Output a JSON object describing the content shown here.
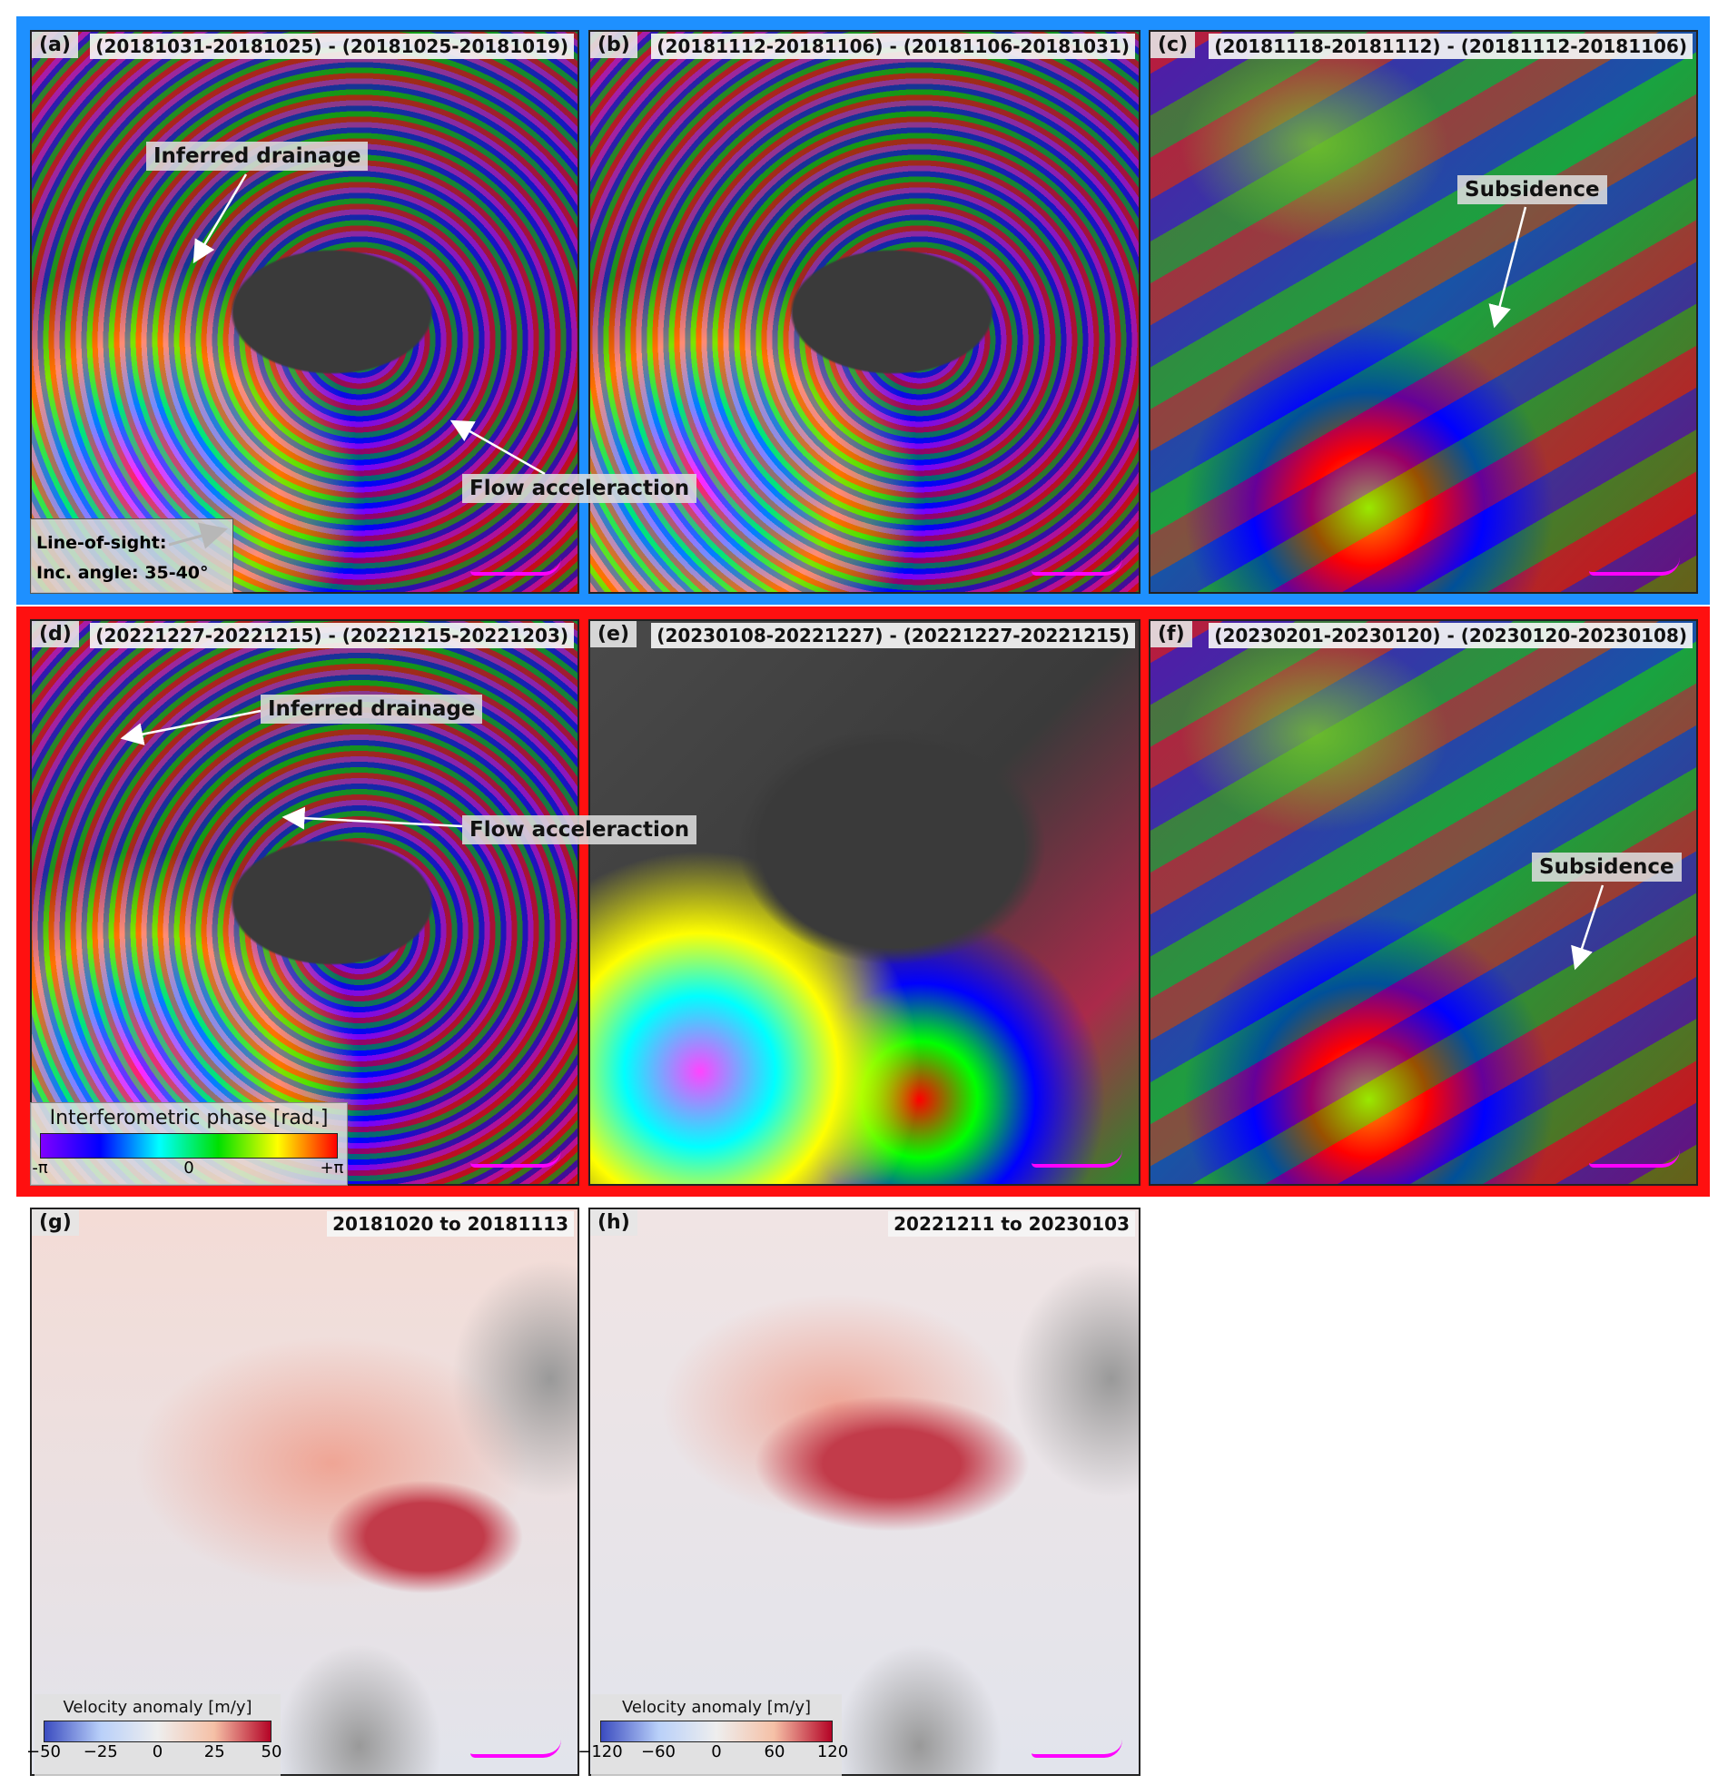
{
  "panels": [
    {
      "id": "(a)",
      "title": "(20181031-20181025) - (20181025-20181019)"
    },
    {
      "id": "(b)",
      "title": "(20181112-20181106) - (20181106-20181031)"
    },
    {
      "id": "(c)",
      "title": "(20181118-20181112) - (20181112-20181106)"
    },
    {
      "id": "(d)",
      "title": "(20221227-20221215) - (20221215-20221203)"
    },
    {
      "id": "(e)",
      "title": "(20230108-20221227) - (20221227-20221215)"
    },
    {
      "id": "(f)",
      "title": "(20230201-20230120) - (20230120-20230108)"
    },
    {
      "id": "(g)",
      "title": "20181020 to 20181113"
    },
    {
      "id": "(h)",
      "title": "20221211 to 20230103"
    }
  ],
  "annotations": {
    "inferred_drainage": "Inferred drainage",
    "flow_acceleration": "Flow acceleraction",
    "subsidence": "Subsidence"
  },
  "los": {
    "line1": "Line-of-sight:",
    "line2": "Inc. angle: 35-40°"
  },
  "phase_colorbar": {
    "title": "Interferometric phase [rad.]",
    "ticks": [
      "-π",
      "0",
      "+π"
    ],
    "colors": [
      "#8000ff",
      "#0000ff",
      "#00ffff",
      "#00e000",
      "#ffff00",
      "#ff0000"
    ]
  },
  "velocity_colorbars": [
    {
      "title": "Velocity anomaly [m/y]",
      "ticks": [
        "−50",
        "−25",
        "0",
        "25",
        "50"
      ]
    },
    {
      "title": "Velocity anomaly [m/y]",
      "ticks": [
        "−120",
        "−60",
        "0",
        "60",
        "120"
      ]
    }
  ],
  "colors": {
    "group_2018": "#1e90ff",
    "group_2022": "#ff1010",
    "coastline": "#ff00ff"
  }
}
